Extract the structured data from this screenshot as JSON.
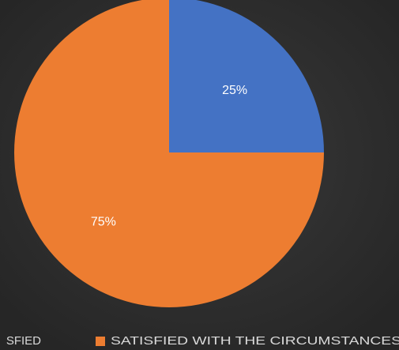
{
  "chart_data": {
    "type": "pie",
    "categories": [
      "SFIED",
      "SATISFIED WITH THE CIRCUMSTANCES"
    ],
    "values": [
      25,
      75
    ],
    "value_labels": [
      "25%",
      "75%"
    ],
    "colors": [
      "#4472c4",
      "#ed7d31"
    ],
    "legend": "bottom"
  }
}
